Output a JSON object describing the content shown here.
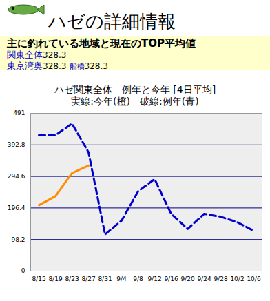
{
  "page": {
    "title": "ハゼの詳細情報",
    "subtitle": "主に釣れている地域と現在のTOP平均値",
    "links": [
      [
        {
          "label": "関東全体",
          "value": 328.3
        }
      ],
      [
        {
          "label": "東京湾奥",
          "value": 328.3
        },
        {
          "label": "船橋",
          "value": 328.3
        }
      ]
    ]
  },
  "chart_data": {
    "type": "line",
    "title": "ハゼ関東全体　例年と今年 [4日平均]",
    "subtitle": "実線:今年(橙)　破線:例年(青)",
    "categories": [
      "8/15",
      "8/19",
      "8/23",
      "8/27",
      "8/31",
      "9/4",
      "9/8",
      "9/12",
      "9/16",
      "9/20",
      "9/24",
      "9/28",
      "10/2",
      "10/6"
    ],
    "series": [
      {
        "name": "例年",
        "color": "#0000cc",
        "line_style": "dashed",
        "values": [
          423,
          423,
          459,
          370,
          114,
          157,
          248,
          286,
          178,
          131,
          178,
          169,
          152,
          125
        ]
      },
      {
        "name": "今年",
        "color": "#ff8c00",
        "line_style": "solid",
        "values": [
          205,
          233,
          305,
          328.3,
          null,
          null,
          null,
          null,
          null,
          null,
          null,
          null,
          null,
          null
        ]
      }
    ],
    "ylim": [
      0,
      491
    ],
    "yticks": [
      0,
      98.2,
      196.4,
      294.6,
      392.8,
      491
    ],
    "grid": true
  }
}
